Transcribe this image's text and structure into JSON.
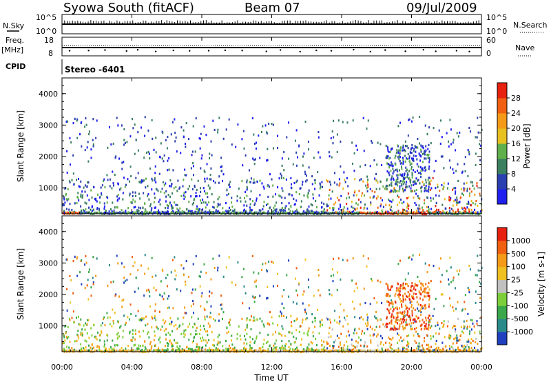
{
  "header": {
    "station": "Syowa South (fitACF)",
    "beam": "Beam 07",
    "date": "09/Jul/2009"
  },
  "panels": {
    "nsky_label": "N.Sky",
    "nsky_top": "10^5",
    "nsky_bottom": "10^0",
    "nsearch_label": "N.Search",
    "nsearch_top": "10^5",
    "nsearch_bottom": "10^0",
    "freq_label": "Freq.",
    "freq_unit": "[MHz]",
    "freq_top": "18",
    "freq_bottom": "8",
    "nave_label": "Nave",
    "nave_top": "60",
    "nave_bottom": "0",
    "cpid_label": "CPID",
    "cpid_value": "Stereo -6401"
  },
  "colors": {
    "background": "#ffffff",
    "axis": "#000000"
  },
  "chart_data": [
    {
      "type": "heatmap",
      "title": "",
      "ylabel": "Slant Range [km]",
      "xlabel": "",
      "ylim": [
        180,
        4500
      ],
      "yticks": [
        "1000",
        "2000",
        "3000",
        "4000"
      ],
      "xlim": [
        0,
        24
      ],
      "colorbar": {
        "label": "Power [dB]",
        "ticks": [
          "4",
          "8",
          "12",
          "16",
          "20",
          "24",
          "28"
        ],
        "colors": [
          "#1f1ff0",
          "#2a3fb0",
          "#3a7f5f",
          "#5fb04a",
          "#e8c020",
          "#f59a18",
          "#f06010",
          "#e82010"
        ]
      }
    },
    {
      "type": "heatmap",
      "title": "",
      "ylabel": "Slant Range [km]",
      "xlabel": "Time UT",
      "ylim": [
        180,
        4500
      ],
      "yticks": [
        "1000",
        "2000",
        "3000",
        "4000"
      ],
      "xlim": [
        0,
        24
      ],
      "xticks": [
        "00:00",
        "04:00",
        "08:00",
        "12:00",
        "16:00",
        "20:00",
        "00:00"
      ],
      "colorbar": {
        "label": "Velocity [m s-1]",
        "ticks": [
          "1000",
          "500",
          "100",
          "25",
          "-25",
          "-100",
          "-500",
          "-1000"
        ],
        "colors": [
          "#2040c0",
          "#2a8a8a",
          "#3aa84a",
          "#7ccf3a",
          "#c0c0c0",
          "#f0c020",
          "#f59a18",
          "#f06010",
          "#e82010"
        ]
      }
    }
  ]
}
